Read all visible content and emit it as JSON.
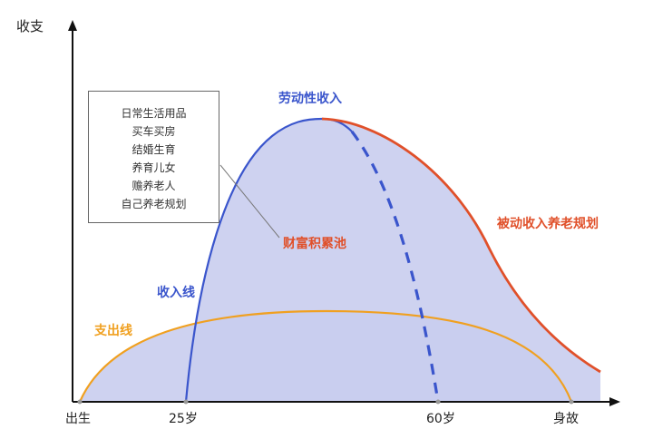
{
  "axis": {
    "y_title": "收支",
    "x_ticks": [
      "出生",
      "25岁",
      "60岁",
      "身故"
    ]
  },
  "curves": {
    "labor_income": "劳动性收入",
    "passive_income": "被动收入养老规划",
    "wealth_pool": "财富积累池",
    "income_line": "收入线",
    "expense_line": "支出线"
  },
  "expenses_box": {
    "items": [
      "日常生活用品",
      "买车买房",
      "结婚生育",
      "养育儿女",
      "赡养老人",
      "自己养老规划"
    ]
  },
  "colors": {
    "income": "#3a55cc",
    "passive": "#e0502a",
    "expense": "#f0a020",
    "fill": "#c9cdee",
    "axis": "#111111"
  }
}
